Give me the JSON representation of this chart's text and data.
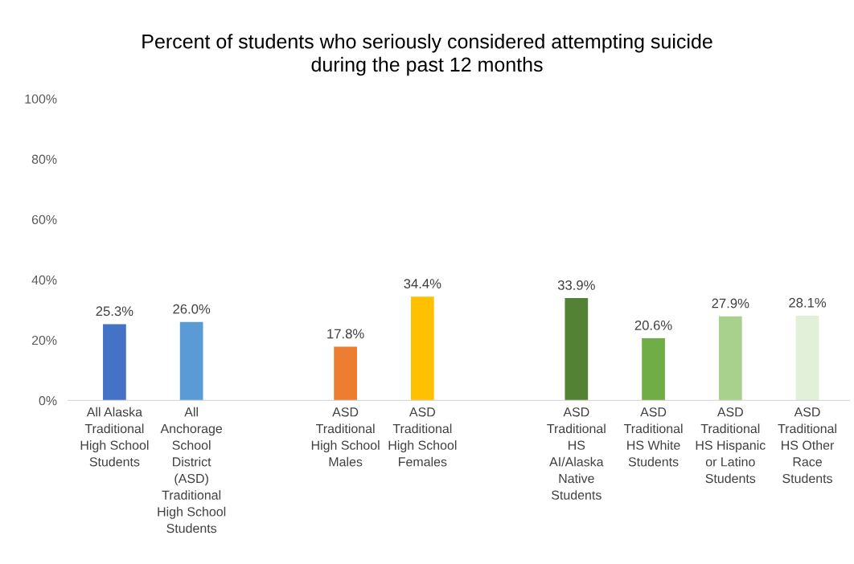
{
  "chart_data": {
    "type": "bar",
    "title": "Percent of students who seriously considered attempting suicide\nduring the past 12 months",
    "categories": [
      "All Alaska\nTraditional\nHigh School\nStudents",
      "All\nAnchorage\nSchool\nDistrict\n(ASD)\nTraditional\nHigh School\nStudents",
      null,
      "ASD\nTraditional\nHigh School\nMales",
      "ASD\nTraditional\nHigh School\nFemales",
      null,
      "ASD\nTraditional\nHS\nAI/Alaska\nNative\nStudents",
      "ASD\nTraditional\nHS White\nStudents",
      "ASD\nTraditional\nHS Hispanic\nor Latino\nStudents",
      "ASD\nTraditional\nHS Other\nRace\nStudents"
    ],
    "values": [
      25.3,
      26.0,
      null,
      17.8,
      34.4,
      null,
      33.9,
      20.6,
      27.9,
      28.1
    ],
    "colors": [
      "#4472c4",
      "#5b9bd5",
      null,
      "#ed7d31",
      "#ffc000",
      null,
      "#548235",
      "#70ad47",
      "#a9d18e",
      "#e2f0d9"
    ],
    "value_labels": [
      "25.3%",
      "26.0%",
      null,
      "17.8%",
      "34.4%",
      null,
      "33.9%",
      "20.6%",
      "27.9%",
      "28.1%"
    ],
    "ylim": [
      0,
      100
    ],
    "yticks": [
      {
        "value": 0,
        "label": "0%"
      },
      {
        "value": 20,
        "label": "20%"
      },
      {
        "value": 40,
        "label": "40%"
      },
      {
        "value": 60,
        "label": "60%"
      },
      {
        "value": 80,
        "label": "80%"
      },
      {
        "value": 100,
        "label": "100%"
      }
    ],
    "grid": false
  }
}
